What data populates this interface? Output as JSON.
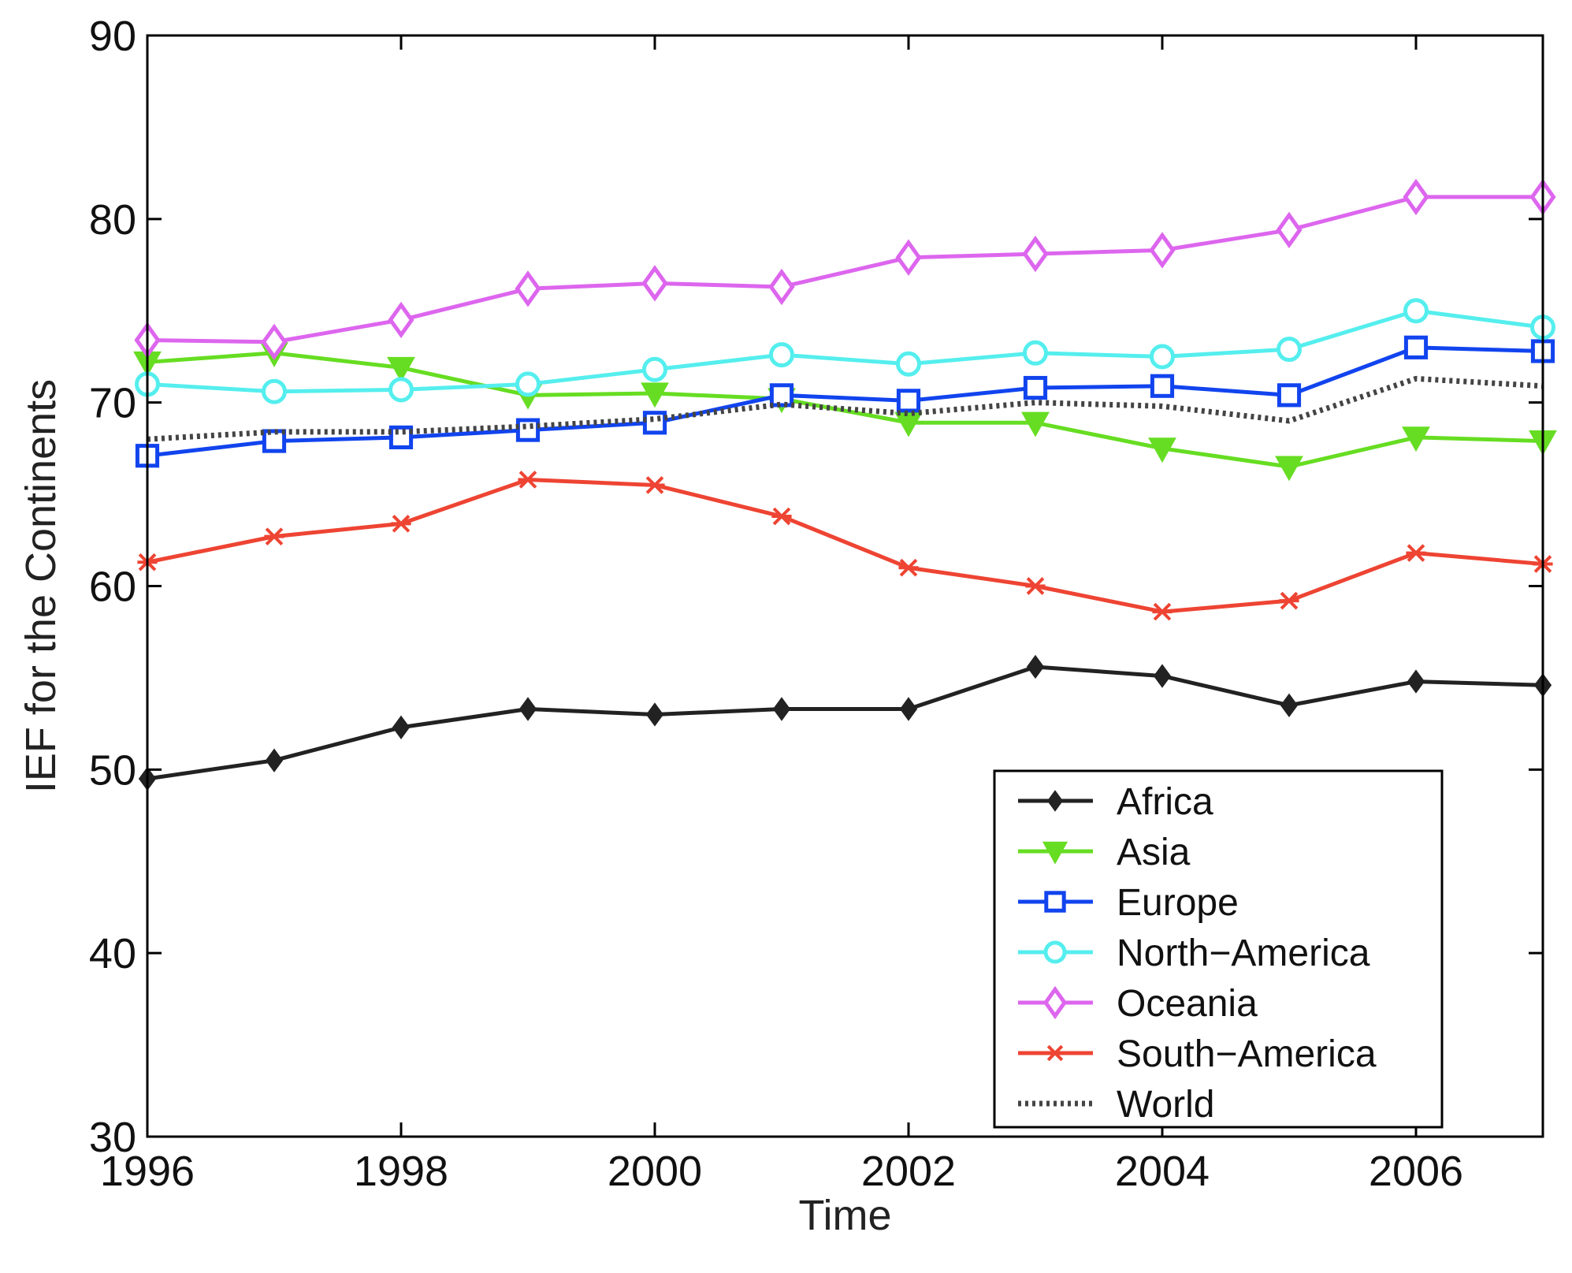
{
  "chart_data": {
    "type": "line",
    "title": "",
    "xlabel": "Time",
    "ylabel": "IEF for the Continents",
    "xlim": [
      1996,
      2007
    ],
    "ylim": [
      30,
      90
    ],
    "xticks": [
      1996,
      1998,
      2000,
      2002,
      2004,
      2006
    ],
    "yticks": [
      30,
      40,
      50,
      60,
      70,
      80,
      90
    ],
    "x": [
      1996,
      1997,
      1998,
      1999,
      2000,
      2001,
      2002,
      2003,
      2004,
      2005,
      2006,
      2007
    ],
    "legend_position": "bottom-right",
    "series": [
      {
        "name": "Africa",
        "color": "#222222",
        "marker": "diamond-small",
        "style": "solid",
        "values": [
          49.5,
          50.5,
          52.3,
          53.3,
          53.0,
          53.3,
          53.3,
          55.6,
          55.1,
          53.5,
          54.8,
          54.6
        ]
      },
      {
        "name": "Asia",
        "color": "#66dd22",
        "marker": "triangle-down",
        "style": "solid",
        "values": [
          72.2,
          72.7,
          71.9,
          70.4,
          70.5,
          70.2,
          68.9,
          68.9,
          67.5,
          66.5,
          68.1,
          67.9
        ]
      },
      {
        "name": "Europe",
        "color": "#1144ee",
        "marker": "square",
        "style": "solid",
        "values": [
          67.1,
          67.9,
          68.1,
          68.5,
          68.9,
          70.4,
          70.1,
          70.8,
          70.9,
          70.4,
          73.0,
          72.8
        ]
      },
      {
        "name": "North−America",
        "color": "#55eeee",
        "marker": "circle",
        "style": "solid",
        "values": [
          71.0,
          70.6,
          70.7,
          71.0,
          71.8,
          72.6,
          72.1,
          72.7,
          72.5,
          72.9,
          75.0,
          74.1
        ]
      },
      {
        "name": "Oceania",
        "color": "#dd66ee",
        "marker": "diamond",
        "style": "solid",
        "values": [
          73.4,
          73.3,
          74.5,
          76.2,
          76.5,
          76.3,
          77.9,
          78.1,
          78.3,
          79.4,
          81.2,
          81.2
        ]
      },
      {
        "name": "South−America",
        "color": "#ee4433",
        "marker": "x",
        "style": "solid",
        "values": [
          61.3,
          62.7,
          63.4,
          65.8,
          65.5,
          63.8,
          61.0,
          60.0,
          58.6,
          59.2,
          61.8,
          61.2
        ]
      },
      {
        "name": "World",
        "color": "#444444",
        "marker": "none",
        "style": "dotted",
        "values": [
          68.0,
          68.4,
          68.4,
          68.7,
          69.1,
          69.9,
          69.4,
          70.0,
          69.8,
          69.0,
          71.3,
          70.9
        ]
      }
    ]
  }
}
